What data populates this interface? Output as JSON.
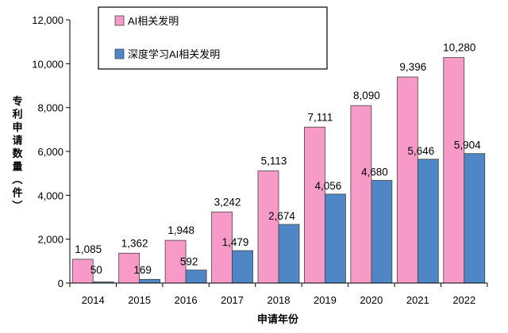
{
  "chart_data": {
    "type": "bar",
    "categories": [
      "2014",
      "2015",
      "2016",
      "2017",
      "2018",
      "2019",
      "2020",
      "2021",
      "2022"
    ],
    "series": [
      {
        "name": "AI相关发明",
        "color": "#f79ac8",
        "values": [
          1085,
          1362,
          1948,
          3242,
          5113,
          7111,
          8090,
          9396,
          10280
        ],
        "labels": [
          "1,085",
          "1,362",
          "1,948",
          "3,242",
          "5,113",
          "7,111",
          "8,090",
          "9,396",
          "10,280"
        ]
      },
      {
        "name": "深度学习AI相关发明",
        "color": "#4f86c6",
        "values": [
          50,
          169,
          592,
          1479,
          2674,
          4056,
          4680,
          5646,
          5904
        ],
        "labels": [
          "50",
          "169",
          "592",
          "1,479",
          "2,674",
          "4,056",
          "4,680",
          "5,646",
          "5,904"
        ]
      }
    ],
    "xlabel": "申请年份",
    "ylabel": "专利申请数量（件）",
    "ylim": [
      0,
      12000
    ],
    "yticks": [
      0,
      2000,
      4000,
      6000,
      8000,
      10000,
      12000
    ],
    "ytick_labels": [
      "0",
      "2,000",
      "4,000",
      "6,000",
      "8,000",
      "10,000",
      "12,000"
    ],
    "grid": false,
    "legend": "top-left"
  }
}
